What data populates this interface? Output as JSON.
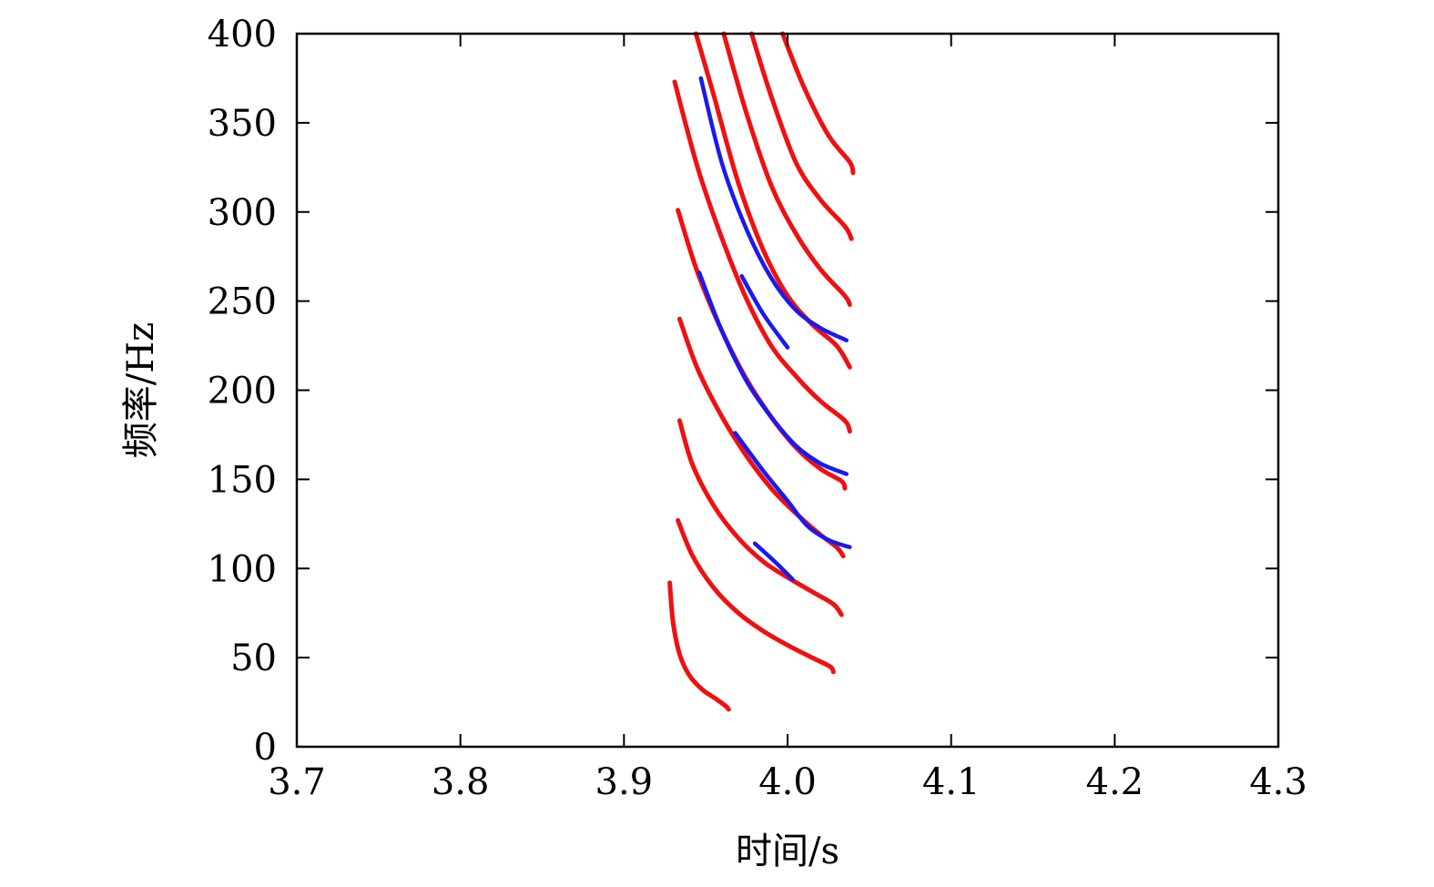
{
  "chart_data": {
    "type": "line",
    "xlabel": "时间/s",
    "ylabel": "频率/Hz",
    "xlim": [
      3.7,
      4.3
    ],
    "ylim": [
      0,
      400
    ],
    "xticks": [
      "3.7",
      "3.8",
      "3.9",
      "4.0",
      "4.1",
      "4.2",
      "4.3"
    ],
    "yticks": [
      "0",
      "50",
      "100",
      "150",
      "200",
      "250",
      "300",
      "350",
      "400"
    ],
    "grid": false,
    "legend": "none",
    "colors": {
      "red": "#ee1111",
      "blue": "#1a1aee"
    },
    "series": [
      {
        "color": "red",
        "x": [
          3.928,
          3.93,
          3.934,
          3.94,
          3.948,
          3.956,
          3.962,
          3.964
        ],
        "y": [
          92,
          70,
          52,
          40,
          32,
          27,
          23,
          21
        ]
      },
      {
        "color": "red",
        "x": [
          3.933,
          3.942,
          3.955,
          3.97,
          3.985,
          4.0,
          4.015,
          4.026,
          4.028
        ],
        "y": [
          127,
          107,
          89,
          75,
          65,
          57,
          50,
          45,
          42
        ]
      },
      {
        "color": "red",
        "x": [
          3.934,
          3.942,
          3.955,
          3.97,
          3.985,
          4.0,
          4.015,
          4.028,
          4.033
        ],
        "y": [
          183,
          158,
          135,
          117,
          104,
          95,
          87,
          80,
          74
        ]
      },
      {
        "color": "red",
        "x": [
          3.934,
          3.945,
          3.96,
          3.975,
          3.99,
          4.005,
          4.02,
          4.03,
          4.034
        ],
        "y": [
          240,
          212,
          185,
          163,
          145,
          131,
          119,
          112,
          107
        ]
      },
      {
        "color": "red",
        "x": [
          3.933,
          3.945,
          3.96,
          3.975,
          3.99,
          4.005,
          4.02,
          4.033,
          4.035
        ],
        "y": [
          301,
          266,
          233,
          206,
          185,
          168,
          156,
          149,
          145
        ]
      },
      {
        "color": "red",
        "x": [
          3.931,
          3.945,
          3.96,
          3.975,
          3.99,
          4.005,
          4.02,
          4.035,
          4.038
        ],
        "y": [
          373,
          325,
          285,
          251,
          225,
          208,
          194,
          183,
          177
        ]
      },
      {
        "color": "red",
        "x": [
          3.944,
          3.955,
          3.97,
          3.985,
          4.0,
          4.015,
          4.03,
          4.038
        ],
        "y": [
          400,
          365,
          316,
          279,
          253,
          237,
          225,
          213
        ]
      },
      {
        "color": "red",
        "x": [
          3.961,
          3.975,
          3.99,
          4.005,
          4.02,
          4.035,
          4.038
        ],
        "y": [
          400,
          355,
          315,
          288,
          268,
          253,
          248
        ]
      },
      {
        "color": "red",
        "x": [
          3.978,
          3.99,
          4.005,
          4.02,
          4.035,
          4.039
        ],
        "y": [
          400,
          365,
          328,
          307,
          292,
          285
        ]
      },
      {
        "color": "red",
        "x": [
          3.997,
          4.01,
          4.025,
          4.038,
          4.04
        ],
        "y": [
          400,
          370,
          343,
          328,
          322
        ]
      },
      {
        "color": "blue",
        "x": [
          3.947,
          3.96,
          3.975,
          3.99,
          4.005,
          4.02,
          4.036
        ],
        "y": [
          375,
          327,
          290,
          263,
          245,
          235,
          228
        ]
      },
      {
        "color": "blue",
        "x": [
          3.972,
          3.985,
          4.0
        ],
        "y": [
          264,
          243,
          224
        ]
      },
      {
        "color": "blue",
        "x": [
          3.946,
          3.96,
          3.975,
          3.99,
          4.005,
          4.02,
          4.036
        ],
        "y": [
          266,
          233,
          205,
          185,
          169,
          159,
          153
        ]
      },
      {
        "color": "blue",
        "x": [
          3.968,
          3.985,
          4.0,
          4.012,
          4.025,
          4.038
        ],
        "y": [
          176,
          155,
          138,
          124,
          116,
          112
        ]
      },
      {
        "color": "blue",
        "x": [
          3.98,
          3.992,
          4.003
        ],
        "y": [
          114,
          104,
          94
        ]
      }
    ]
  }
}
